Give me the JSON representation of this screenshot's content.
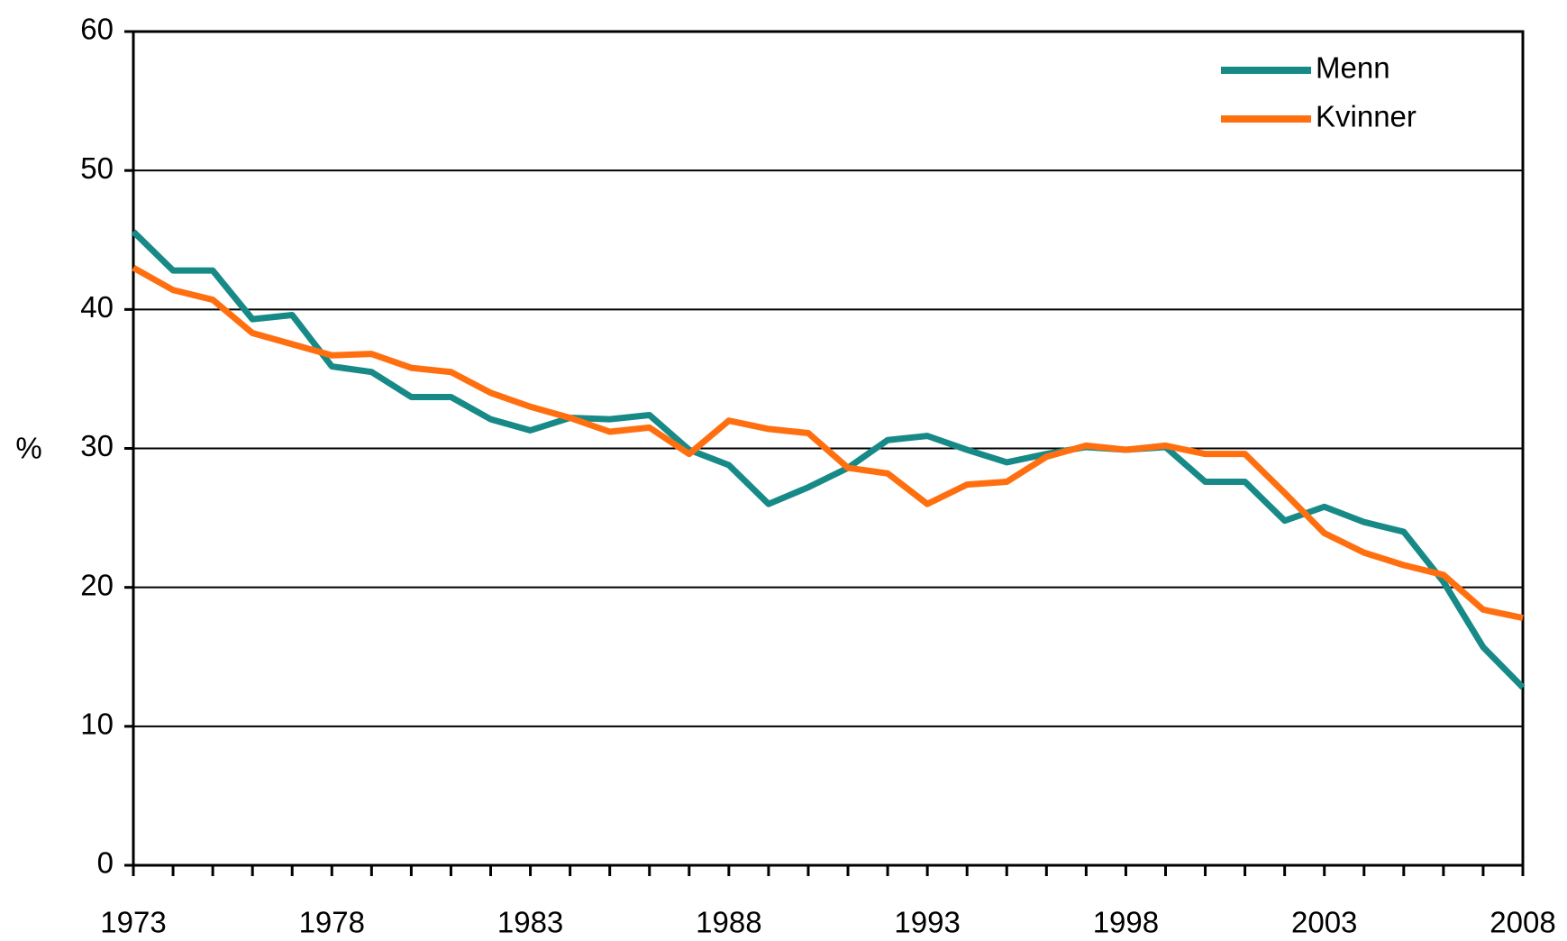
{
  "chart_data": {
    "type": "line",
    "y_label": "%",
    "x": [
      1973,
      1974,
      1975,
      1976,
      1977,
      1978,
      1979,
      1980,
      1981,
      1982,
      1983,
      1984,
      1985,
      1986,
      1987,
      1988,
      1989,
      1990,
      1991,
      1992,
      1993,
      1994,
      1995,
      1996,
      1997,
      1998,
      1999,
      2000,
      2001,
      2002,
      2003,
      2004,
      2005,
      2006,
      2007,
      2008
    ],
    "series": [
      {
        "name": "Menn",
        "color": "#178a87",
        "values": [
          45.6,
          42.8,
          42.8,
          39.3,
          39.6,
          35.9,
          35.5,
          33.7,
          33.7,
          32.1,
          31.3,
          32.2,
          32.1,
          32.4,
          29.9,
          28.8,
          26.0,
          27.2,
          28.6,
          30.6,
          30.9,
          29.9,
          29.0,
          29.6,
          30.1,
          29.9,
          30.1,
          27.6,
          27.6,
          24.8,
          25.8,
          24.7,
          24.0,
          20.4,
          15.7,
          12.8
        ]
      },
      {
        "name": "Kvinner",
        "color": "#ff6f0f",
        "values": [
          43.0,
          41.4,
          40.7,
          38.3,
          37.5,
          36.7,
          36.8,
          35.8,
          35.5,
          34.0,
          33.0,
          32.2,
          31.2,
          31.5,
          29.6,
          32.0,
          31.4,
          31.1,
          28.6,
          28.2,
          26.0,
          27.4,
          27.6,
          29.4,
          30.2,
          29.9,
          30.2,
          29.6,
          29.6,
          26.8,
          23.9,
          22.5,
          21.6,
          20.9,
          18.4,
          17.8
        ]
      }
    ],
    "xlim": [
      1973,
      2008
    ],
    "xticks": [
      1973,
      1978,
      1983,
      1988,
      1993,
      1998,
      2003,
      2008
    ],
    "ylim": [
      0,
      60
    ],
    "yticks": [
      0,
      10,
      20,
      30,
      40,
      50,
      60
    ],
    "grid": true,
    "legend": "top-right"
  }
}
